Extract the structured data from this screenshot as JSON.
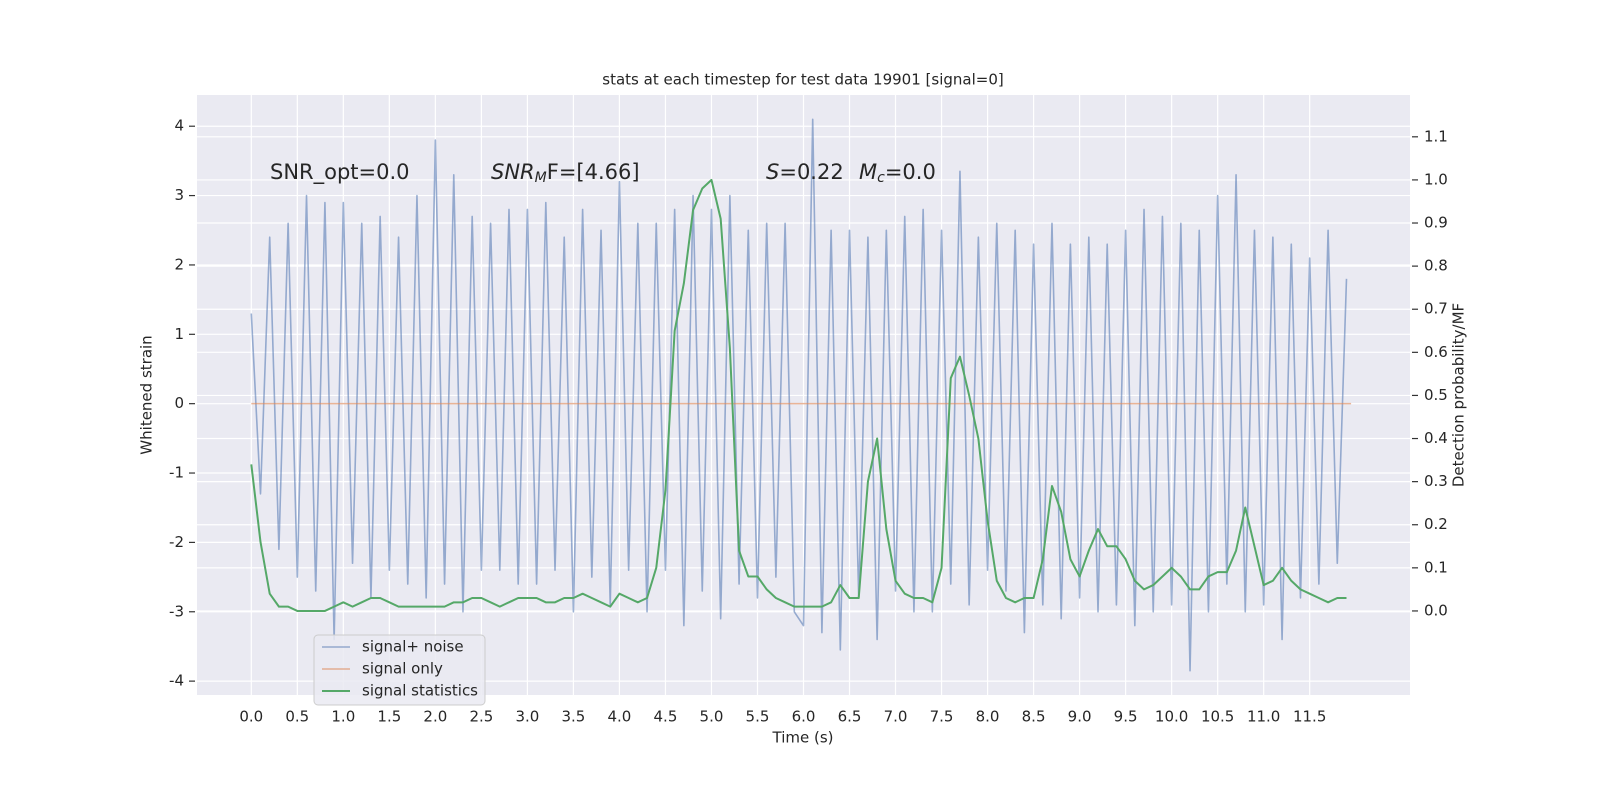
{
  "chart_data": {
    "type": "line",
    "title": "stats at each timestep for test data 19901 [signal=0]",
    "xlabel": "Time (s)",
    "ylabel": "Whitened strain",
    "y2label": "Detection probability/MF",
    "xlim": [
      -0.59,
      12.59
    ],
    "ylim": [
      -4.2,
      4.45
    ],
    "y2lim": [
      -0.195,
      1.197
    ],
    "xticks": [
      {
        "value": 0,
        "label": "0.0"
      },
      0.5,
      {
        "value": 1,
        "label": "1.0"
      },
      1.5,
      {
        "value": 2,
        "label": "2.0"
      },
      2.5,
      {
        "value": 3,
        "label": "3.0"
      },
      3.5,
      {
        "value": 4,
        "label": "4.0"
      },
      4.5,
      {
        "value": 5,
        "label": "5.0"
      },
      5.5,
      {
        "value": 6,
        "label": "6.0"
      },
      6.5,
      {
        "value": 7,
        "label": "7.0"
      },
      7.5,
      {
        "value": 8,
        "label": "8.0"
      },
      8.5,
      {
        "value": 9,
        "label": "9.0"
      },
      9.5,
      {
        "value": 10,
        "label": "10.0"
      },
      10.5,
      {
        "value": 11,
        "label": "11.0"
      },
      11.5
    ],
    "yticks": [
      -4,
      -3,
      -2,
      -1,
      0,
      1,
      2,
      3,
      4
    ],
    "y2ticks": [
      {
        "value": 0,
        "label": "0.0"
      },
      0.1,
      0.2,
      0.3,
      0.4,
      0.5,
      0.6,
      0.7,
      0.8,
      0.9,
      {
        "value": 1,
        "label": "1.0"
      },
      1.1
    ],
    "grid": true,
    "legend": "lower left",
    "annotations": [
      [
        "SNR_opt=0.0"
      ],
      [
        "SNR",
        "M",
        "F=[4.66]"
      ],
      [
        "S",
        "=0.22"
      ],
      [
        "M",
        "c",
        "=0.0"
      ]
    ],
    "series": [
      {
        "name": "signal+ noise",
        "color": "#4c72b0",
        "x": [
          0,
          0.1,
          0.2,
          0.3,
          0.4,
          0.5,
          0.6,
          0.7,
          0.8,
          0.9,
          1,
          1.1,
          1.2,
          1.3,
          1.4,
          1.5,
          1.6,
          1.7,
          1.8,
          1.9,
          2,
          2.1,
          2.2,
          2.3,
          2.4,
          2.5,
          2.6,
          2.7,
          2.8,
          2.9,
          3,
          3.1,
          3.2,
          3.3,
          3.4,
          3.5,
          3.6,
          3.7,
          3.8,
          3.9,
          4,
          4.1,
          4.2,
          4.3,
          4.4,
          4.5,
          4.6,
          4.7,
          4.8,
          4.9,
          5,
          5.1,
          5.2,
          5.3,
          5.4,
          5.5,
          5.6,
          5.7,
          5.8,
          5.9,
          6,
          6.1,
          6.2,
          6.3,
          6.4,
          6.5,
          6.6,
          6.7,
          6.8,
          6.9,
          7,
          7.1,
          7.2,
          7.3,
          7.4,
          7.5,
          7.6,
          7.7,
          7.8,
          7.9,
          8,
          8.1,
          8.2,
          8.3,
          8.4,
          8.5,
          8.6,
          8.7,
          8.8,
          8.9,
          9,
          9.1,
          9.2,
          9.3,
          9.4,
          9.5,
          9.6,
          9.7,
          9.8,
          9.9,
          10,
          10.1,
          10.2,
          10.3,
          10.4,
          10.5,
          10.6,
          10.7,
          10.8,
          10.9,
          11,
          11.1,
          11.2,
          11.3,
          11.4,
          11.5,
          11.6,
          11.7,
          11.8,
          11.9
        ],
        "values": [
          1.3,
          -1.3,
          2.4,
          -2.1,
          2.6,
          -2.5,
          3.0,
          -2.7,
          2.9,
          -3.4,
          2.9,
          -2.3,
          2.6,
          -2.8,
          2.7,
          -2.4,
          2.4,
          -2.6,
          3.0,
          -2.8,
          3.8,
          -2.6,
          3.3,
          -3.0,
          2.7,
          -2.4,
          2.6,
          -2.4,
          2.8,
          -2.6,
          2.8,
          -2.6,
          2.9,
          -2.4,
          2.4,
          -3.0,
          2.8,
          -2.5,
          2.5,
          -2.9,
          3.2,
          -2.4,
          2.6,
          -3.0,
          2.6,
          -2.4,
          2.8,
          -3.2,
          3.0,
          -2.7,
          2.8,
          -3.1,
          3.0,
          -2.6,
          2.5,
          -2.8,
          2.6,
          -2.5,
          2.6,
          -3.0,
          -3.2,
          4.1,
          -3.3,
          2.5,
          -3.55,
          2.5,
          -2.8,
          2.4,
          -3.4,
          2.5,
          -2.7,
          2.7,
          -3.0,
          2.8,
          -3.0,
          2.5,
          -2.6,
          3.35,
          -2.9,
          2.4,
          -2.4,
          2.6,
          -2.7,
          2.5,
          -3.3,
          2.3,
          -2.9,
          2.6,
          -3.1,
          2.3,
          -2.8,
          2.4,
          -3.0,
          2.3,
          -2.9,
          2.5,
          -3.2,
          2.8,
          -3.0,
          2.7,
          -2.9,
          2.6,
          -3.85,
          2.5,
          -3.0,
          3.0,
          -2.6,
          3.3,
          -3.0,
          2.5,
          -2.9,
          2.4,
          -3.4,
          2.3,
          -2.8,
          2.1,
          -2.6,
          2.5,
          -2.3,
          1.8
        ]
      },
      {
        "name": "signal only",
        "color": "#dd8452",
        "x": [
          0,
          11.95
        ],
        "values": [
          0,
          0
        ]
      },
      {
        "name": "signal statistics",
        "color": "#55a868",
        "axis": "y2",
        "x": [
          0,
          0.1,
          0.2,
          0.3,
          0.4,
          0.5,
          0.6,
          0.7,
          0.8,
          0.9,
          1,
          1.1,
          1.2,
          1.3,
          1.4,
          1.5,
          1.6,
          1.7,
          1.8,
          1.9,
          2,
          2.1,
          2.2,
          2.3,
          2.4,
          2.5,
          2.6,
          2.7,
          2.8,
          2.9,
          3,
          3.1,
          3.2,
          3.3,
          3.4,
          3.5,
          3.6,
          3.7,
          3.8,
          3.9,
          4,
          4.1,
          4.2,
          4.3,
          4.4,
          4.5,
          4.6,
          4.7,
          4.8,
          4.9,
          5,
          5.1,
          5.2,
          5.3,
          5.4,
          5.5,
          5.6,
          5.7,
          5.8,
          5.9,
          6,
          6.1,
          6.2,
          6.3,
          6.4,
          6.5,
          6.6,
          6.7,
          6.8,
          6.9,
          7,
          7.1,
          7.2,
          7.3,
          7.4,
          7.5,
          7.6,
          7.7,
          7.8,
          7.9,
          8,
          8.1,
          8.2,
          8.3,
          8.4,
          8.5,
          8.6,
          8.7,
          8.8,
          8.9,
          9,
          9.1,
          9.2,
          9.3,
          9.4,
          9.5,
          9.6,
          9.7,
          9.8,
          9.9,
          10,
          10.1,
          10.2,
          10.3,
          10.4,
          10.5,
          10.6,
          10.7,
          10.8,
          10.9,
          11,
          11.1,
          11.2,
          11.3,
          11.4,
          11.5,
          11.6,
          11.7,
          11.8,
          11.9
        ],
        "values": [
          0.34,
          0.16,
          0.04,
          0.01,
          0.01,
          0.0,
          0.0,
          0.0,
          0.0,
          0.01,
          0.02,
          0.01,
          0.02,
          0.03,
          0.03,
          0.02,
          0.01,
          0.01,
          0.01,
          0.01,
          0.01,
          0.01,
          0.02,
          0.02,
          0.03,
          0.03,
          0.02,
          0.01,
          0.02,
          0.03,
          0.03,
          0.03,
          0.02,
          0.02,
          0.03,
          0.03,
          0.04,
          0.03,
          0.02,
          0.01,
          0.04,
          0.03,
          0.02,
          0.03,
          0.1,
          0.28,
          0.65,
          0.76,
          0.93,
          0.98,
          1.0,
          0.91,
          0.61,
          0.14,
          0.08,
          0.08,
          0.05,
          0.03,
          0.02,
          0.01,
          0.01,
          0.01,
          0.01,
          0.02,
          0.06,
          0.03,
          0.03,
          0.3,
          0.4,
          0.19,
          0.07,
          0.04,
          0.03,
          0.03,
          0.02,
          0.1,
          0.54,
          0.59,
          0.5,
          0.4,
          0.21,
          0.07,
          0.03,
          0.02,
          0.03,
          0.03,
          0.12,
          0.29,
          0.23,
          0.12,
          0.08,
          0.14,
          0.19,
          0.15,
          0.15,
          0.12,
          0.07,
          0.05,
          0.06,
          0.08,
          0.1,
          0.08,
          0.05,
          0.05,
          0.08,
          0.09,
          0.09,
          0.14,
          0.24,
          0.15,
          0.06,
          0.07,
          0.1,
          0.07,
          0.05,
          0.04,
          0.03,
          0.02,
          0.03,
          0.03
        ]
      }
    ]
  }
}
